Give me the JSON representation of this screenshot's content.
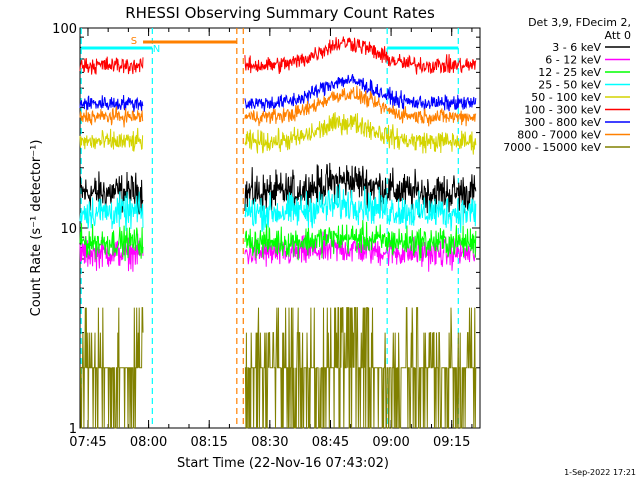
{
  "chart_data": {
    "type": "line",
    "title": "RHESSI Observing Summary Count Rates",
    "xlabel": "Start Time (22-Nov-16 07:43:02)",
    "ylabel": "Count Rate (s⁻¹ detector⁻¹)",
    "y_scale": "log",
    "ylim": [
      1,
      100
    ],
    "y_ticks": [
      {
        "value": 1,
        "label": "1"
      },
      {
        "value": 10,
        "label": "10"
      },
      {
        "value": 100,
        "label": "100"
      }
    ],
    "xlim": [
      "07:43:02",
      "09:22:00"
    ],
    "x_ticks": [
      "07:45",
      "08:00",
      "08:15",
      "08:30",
      "08:45",
      "09:00",
      "09:15"
    ],
    "x_tick_minutes": [
      1.97,
      16.97,
      31.97,
      46.97,
      61.97,
      76.97,
      91.97
    ],
    "data_gap_minutes": [
      15.6,
      40.8
    ],
    "legend_header": [
      "Det 3,9, FDecim 2,",
      "Att 0"
    ],
    "legend_position": "right",
    "series": [
      {
        "name": "3 - 6 keV",
        "color": "#000000",
        "level": 15,
        "noise": 0.45,
        "bump": 0.15
      },
      {
        "name": "6 - 12 keV",
        "color": "#ff00ff",
        "level": 7.5,
        "noise": 0.35,
        "bump": 0.05
      },
      {
        "name": "12 - 25 keV",
        "color": "#00ff00",
        "level": 8.5,
        "noise": 0.35,
        "bump": 0.05
      },
      {
        "name": "25 - 50 keV",
        "color": "#00ffff",
        "level": 12,
        "noise": 0.4,
        "bump": 0.1
      },
      {
        "name": "50 - 100 keV",
        "color": "#d4d400",
        "level": 27,
        "noise": 0.25,
        "bump": 0.25
      },
      {
        "name": "100 - 300 keV",
        "color": "#ff0000",
        "level": 65,
        "noise": 0.2,
        "bump": 0.3
      },
      {
        "name": "300 - 800 keV",
        "color": "#0000ff",
        "level": 42,
        "noise": 0.18,
        "bump": 0.3
      },
      {
        "name": "800 - 7000 keV",
        "color": "#ff8000",
        "level": 36,
        "noise": 0.18,
        "bump": 0.3
      },
      {
        "name": "7000 - 15000 keV",
        "color": "#808000",
        "level": 1.6,
        "noise": 0.9,
        "bump": 0.4
      }
    ],
    "markers": [
      {
        "label": "S",
        "minute": 15.6,
        "color": "#ff8000"
      },
      {
        "label": "N",
        "minute": 17.5,
        "color": "#00ffff"
      }
    ],
    "footer_date": "1-Sep-2022 17:21"
  }
}
